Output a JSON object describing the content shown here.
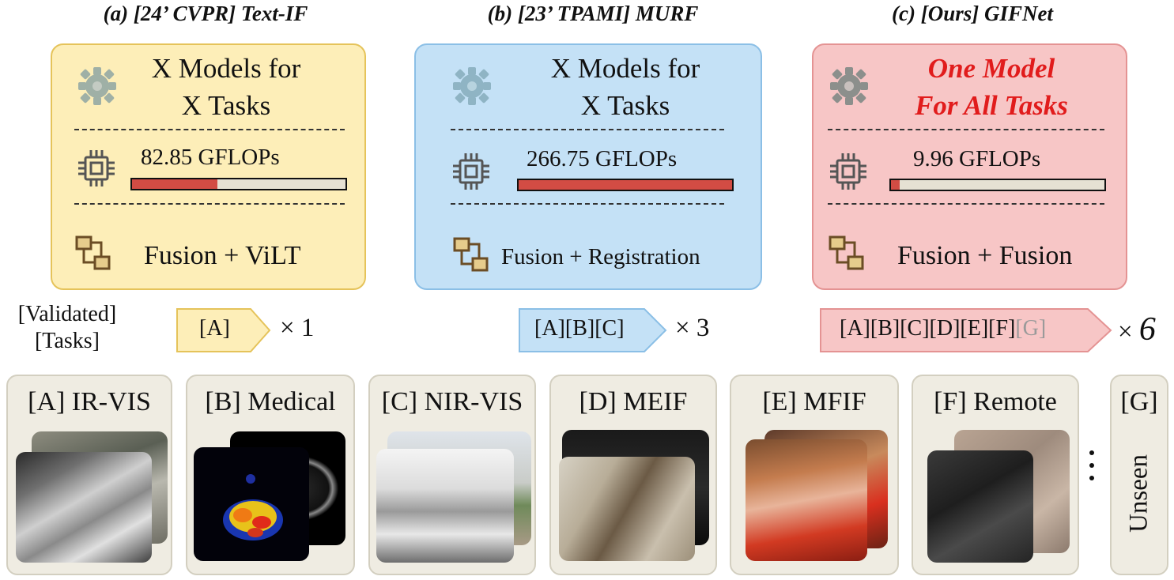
{
  "columns": [
    {
      "title": "(a) [24’ CVPR] Text-IF",
      "models_line1": "X Models for",
      "models_line2": "X Tasks",
      "gflops": "82.85 GFLOPs",
      "gflops_value": 82.85,
      "task_label": "Fusion + ViLT",
      "tags": "[A]",
      "tasks_count": "× 1",
      "colors": {
        "fill": "#fdeeb8",
        "border": "#e5c35a"
      }
    },
    {
      "title": "(b) [23’ TPAMI] MURF",
      "models_line1": "X Models for",
      "models_line2": "X Tasks",
      "gflops": "266.75 GFLOPs",
      "gflops_value": 266.75,
      "task_label": "Fusion + Registration",
      "tags": "[A][B][C]",
      "tasks_count": "× 3",
      "colors": {
        "fill": "#c4e1f6",
        "border": "#8bbfe6"
      }
    },
    {
      "title": "(c) [Ours] GIFNet",
      "models_line1": "One Model",
      "models_line2": "For All Tasks",
      "gflops": "9.96 GFLOPs",
      "gflops_value": 9.96,
      "task_label": "Fusion + Fusion",
      "tags_main": "[A][B][C][D][E][F]",
      "tags_unseen": "[G]",
      "tasks_count_symbol": "×",
      "tasks_count_value": "6",
      "colors": {
        "fill": "#f7c6c6",
        "border": "#e49393",
        "highlight": "#e11c1c"
      }
    }
  ],
  "validated_tasks": {
    "line1": "[Validated]",
    "line2": "[Tasks]"
  },
  "icons": [
    "gear-icon",
    "chip-icon",
    "flow-icon"
  ],
  "bar_colors": {
    "fill": "#d24c44",
    "empty": "#e6e1d3"
  },
  "panels": [
    {
      "label": "[A] IR-VIS"
    },
    {
      "label": "[B] Medical"
    },
    {
      "label": "[C] NIR-VIS"
    },
    {
      "label": "[D] MEIF"
    },
    {
      "label": "[E] MFIF"
    },
    {
      "label": "[F] Remote"
    }
  ],
  "unseen": {
    "label": "[G]",
    "text": "Unseen"
  }
}
